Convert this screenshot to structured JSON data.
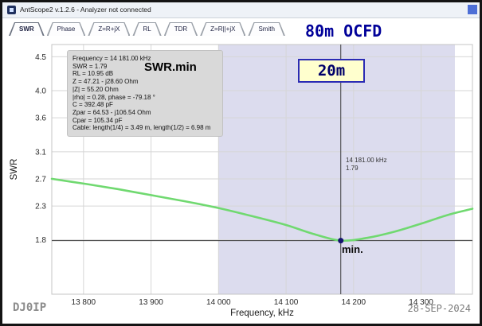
{
  "window": {
    "title": "AntScope2 v.1.2.6 - Analyzer not connected"
  },
  "tabs": [
    {
      "label": "SWR",
      "active": true
    },
    {
      "label": "Phase",
      "active": false
    },
    {
      "label": "Z=R+jX",
      "active": false
    },
    {
      "label": "RL",
      "active": false
    },
    {
      "label": "TDR",
      "active": false
    },
    {
      "label": "Z=R||+jX",
      "active": false
    },
    {
      "label": "Smith",
      "active": false
    }
  ],
  "header": {
    "antenna_label": "80m OCFD",
    "band_label": "20m"
  },
  "info_box": {
    "lines": [
      "Frequency = 14 181.00 kHz",
      "SWR = 1.79",
      "RL = 10.95 dB",
      "Z = 47.21 - j28.60 Ohm",
      "|Z| = 55.20 Ohm",
      "|rho| = 0.28, phase = -79.18 °",
      "C = 392.48 pF",
      "Zpar = 64.53 - j106.54 Ohm",
      "Cpar = 105.34 pF",
      "Cable: length(1/4) = 3.49 m, length(1/2) = 6.98 m"
    ]
  },
  "annotations": {
    "swr_min_label": "SWR.min",
    "min_label": "min.",
    "cursor_freq": "14 181.00 kHz",
    "cursor_swr": "1.79"
  },
  "footer": {
    "callsign": "DJ0IP",
    "date": "28-SEP-2024"
  },
  "chart_data": {
    "type": "line",
    "title": "",
    "xlabel": "Frequency, kHz",
    "ylabel": "SWR",
    "xlim": [
      13753,
      14376
    ],
    "ylim": [
      1.0,
      4.68
    ],
    "grid": true,
    "x_ticks": [
      13800,
      13900,
      14000,
      14100,
      14200,
      14300
    ],
    "x_tick_labels": [
      "13 800",
      "13 900",
      "14 000",
      "14 100",
      "14 200",
      "14 300"
    ],
    "y_ticks": [
      4.5,
      4.0,
      3.6,
      3.1,
      2.7,
      2.3,
      1.8
    ],
    "y_tick_labels": [
      "4.5",
      "4.0",
      "3.6",
      "3.1",
      "2.7",
      "2.3",
      "1.8"
    ],
    "band": {
      "start": 14000,
      "end": 14350,
      "color": "#dcdcee"
    },
    "series": [
      {
        "name": "SWR",
        "color": "#70d970",
        "x": [
          13753,
          13800,
          13850,
          13900,
          13950,
          14000,
          14050,
          14100,
          14140,
          14181,
          14220,
          14260,
          14300,
          14340,
          14376
        ],
        "y": [
          2.7,
          2.63,
          2.55,
          2.46,
          2.37,
          2.27,
          2.15,
          2.02,
          1.89,
          1.79,
          1.83,
          1.92,
          2.04,
          2.17,
          2.26
        ]
      }
    ],
    "cursor": {
      "x": 14181,
      "y": 1.79,
      "freq_label": "14 181.00 kHz",
      "value_label": "1.79",
      "marker_color": "#14146e",
      "line_color": "#3c3c3c"
    }
  }
}
